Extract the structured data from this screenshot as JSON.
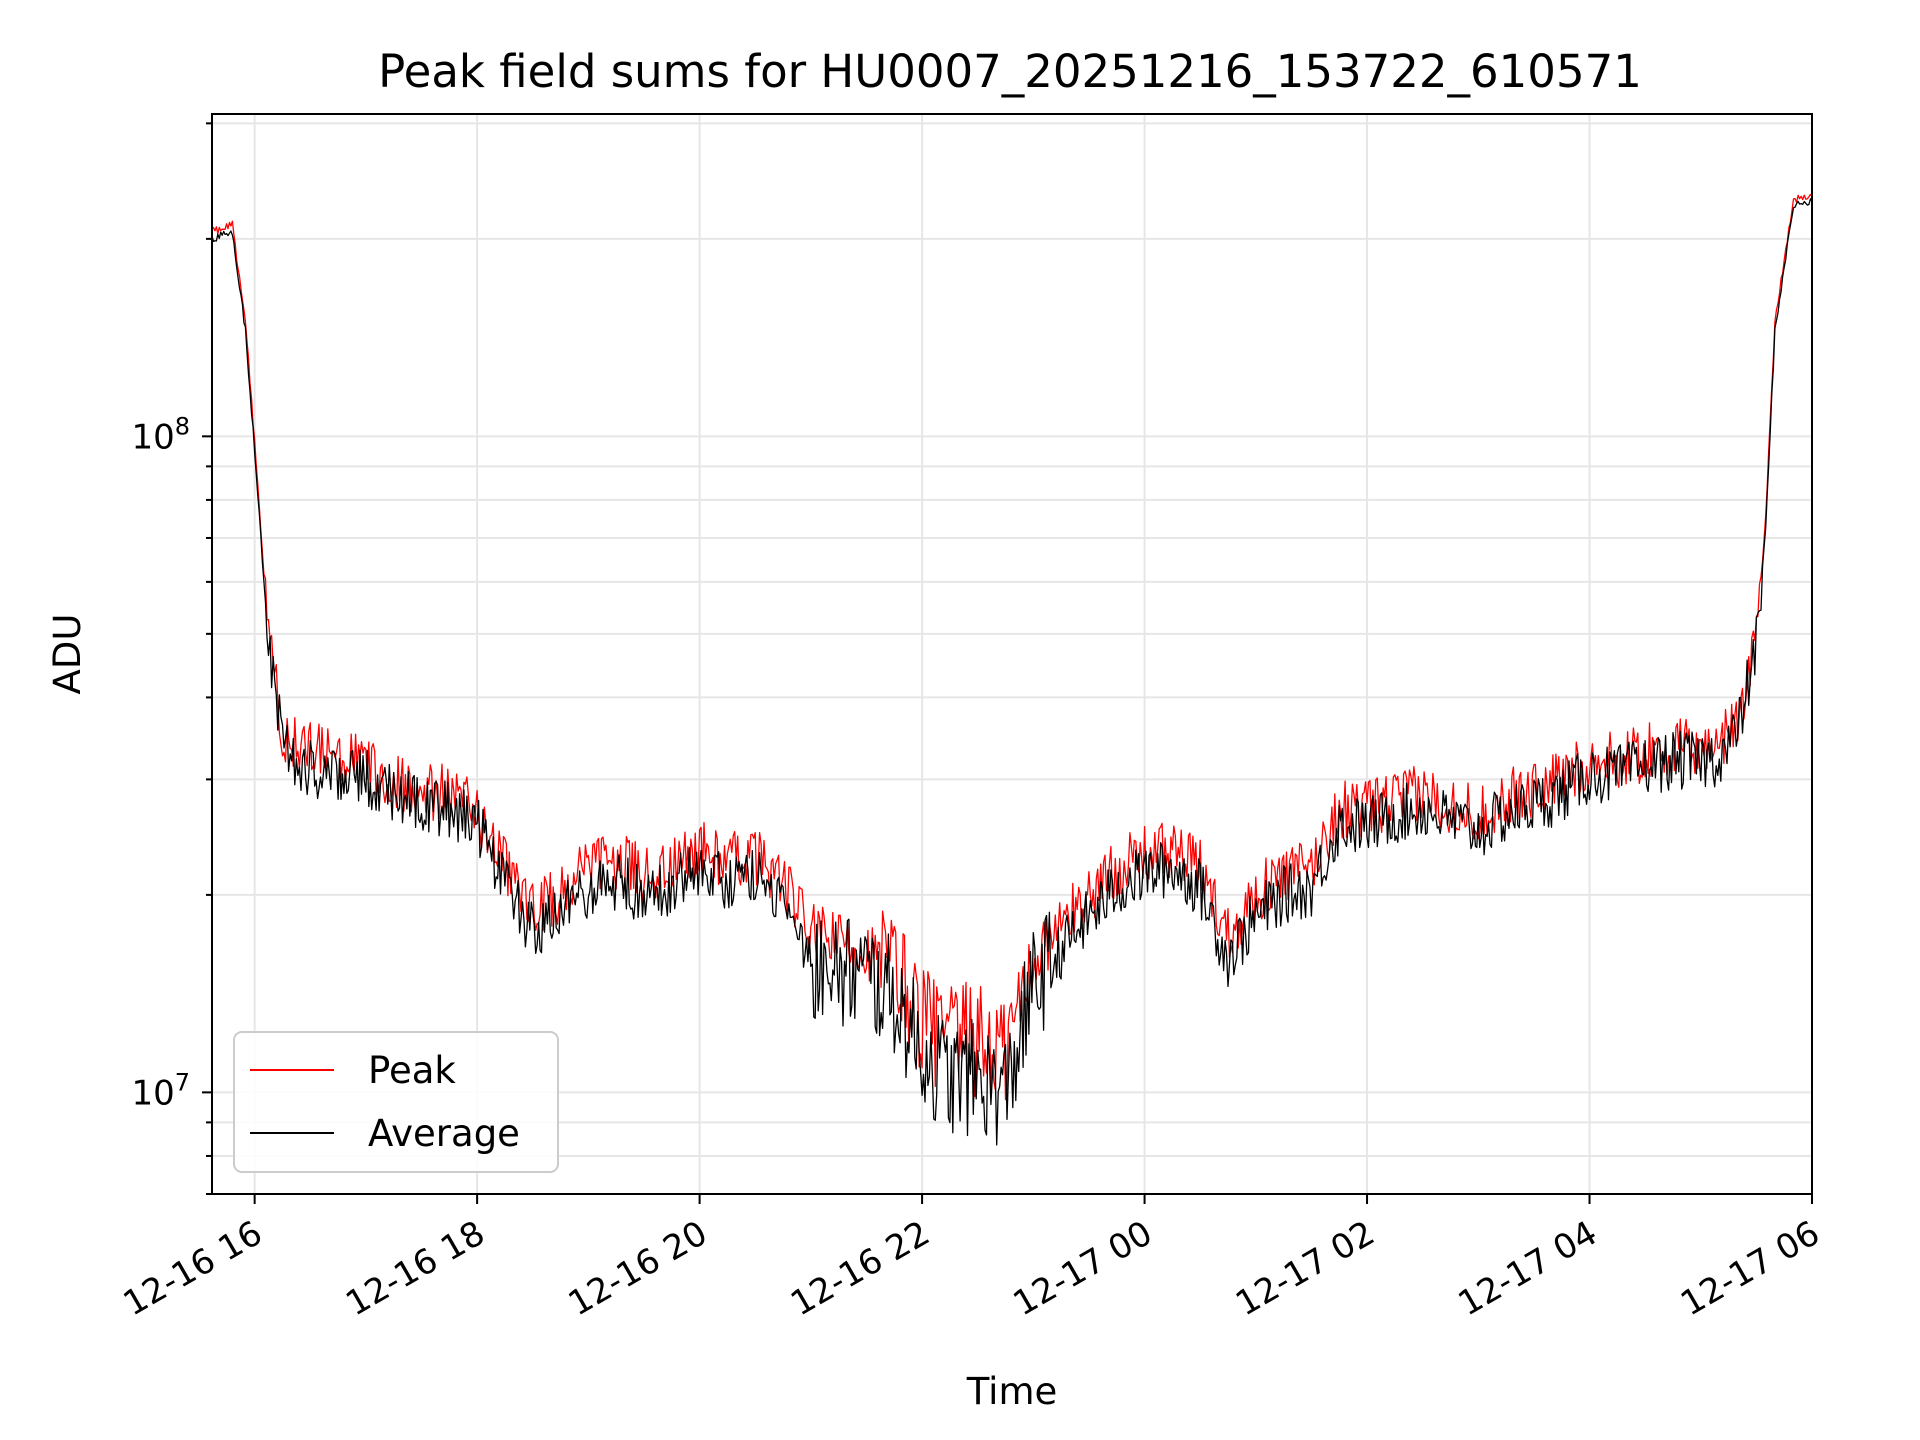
{
  "chart_data": {
    "type": "line",
    "title": "Peak field sums for HU0007_20251216_153722_610571",
    "xlabel": "Time",
    "ylabel": "ADU",
    "yscale": "log",
    "ylim": [
      7000000,
      310000000
    ],
    "xlim": [
      "2025-12-16 15:37",
      "2025-12-17 06:00"
    ],
    "grid": true,
    "legend_position": "lower-left",
    "x_ticks": [
      "12-16 16",
      "12-16 18",
      "12-16 20",
      "12-16 22",
      "12-17 00",
      "12-17 02",
      "12-17 04",
      "12-17 06"
    ],
    "y_ticks": [
      {
        "base": "10",
        "exp": "7",
        "value": 10000000
      },
      {
        "base": "10",
        "exp": "8",
        "value": 100000000
      }
    ],
    "colors": {
      "peak": "#ff0000",
      "average": "#000000",
      "grid": "#e6e6e6"
    },
    "series": [
      {
        "name": "Peak",
        "color": "#ff0000",
        "x": [
          "2025-12-16 15:37",
          "2025-12-16 15:48",
          "2025-12-16 15:55",
          "2025-12-16 16:00",
          "2025-12-16 16:05",
          "2025-12-16 16:10",
          "2025-12-16 16:15",
          "2025-12-16 16:20",
          "2025-12-16 16:30",
          "2025-12-16 16:45",
          "2025-12-16 17:00",
          "2025-12-16 17:15",
          "2025-12-16 17:30",
          "2025-12-16 17:45",
          "2025-12-16 18:00",
          "2025-12-16 18:15",
          "2025-12-16 18:30",
          "2025-12-16 18:45",
          "2025-12-16 19:00",
          "2025-12-16 19:15",
          "2025-12-16 19:30",
          "2025-12-16 19:45",
          "2025-12-16 20:00",
          "2025-12-16 20:15",
          "2025-12-16 20:30",
          "2025-12-16 20:45",
          "2025-12-16 21:00",
          "2025-12-16 21:15",
          "2025-12-16 21:30",
          "2025-12-16 21:45",
          "2025-12-16 22:00",
          "2025-12-16 22:15",
          "2025-12-16 22:30",
          "2025-12-16 22:45",
          "2025-12-16 23:00",
          "2025-12-16 23:15",
          "2025-12-16 23:30",
          "2025-12-16 23:45",
          "2025-12-17 00:00",
          "2025-12-17 00:15",
          "2025-12-17 00:30",
          "2025-12-17 00:45",
          "2025-12-17 01:00",
          "2025-12-17 01:15",
          "2025-12-17 01:30",
          "2025-12-17 01:45",
          "2025-12-17 02:00",
          "2025-12-17 02:15",
          "2025-12-17 02:30",
          "2025-12-17 02:45",
          "2025-12-17 03:00",
          "2025-12-17 03:15",
          "2025-12-17 03:30",
          "2025-12-17 03:45",
          "2025-12-17 04:00",
          "2025-12-17 04:15",
          "2025-12-17 04:30",
          "2025-12-17 04:45",
          "2025-12-17 05:00",
          "2025-12-17 05:10",
          "2025-12-17 05:20",
          "2025-12-17 05:30",
          "2025-12-17 05:35",
          "2025-12-17 05:40",
          "2025-12-17 05:50",
          "2025-12-17 06:00"
        ],
        "values": [
          205000000,
          210000000,
          150000000,
          98000000,
          62000000,
          44000000,
          36000000,
          34000000,
          33000000,
          32500000,
          31500000,
          30000000,
          29000000,
          28500000,
          27000000,
          22000000,
          19000000,
          20000000,
          22000000,
          22500000,
          21500000,
          22000000,
          23500000,
          22500000,
          23000000,
          21000000,
          17500000,
          17000000,
          16500000,
          15500000,
          13000000,
          12000000,
          12000000,
          11500000,
          16000000,
          18000000,
          20000000,
          22000000,
          23000000,
          23500000,
          22000000,
          17500000,
          20000000,
          21500000,
          22000000,
          27000000,
          27000000,
          28000000,
          28500000,
          27500000,
          26500000,
          28000000,
          29000000,
          30000000,
          32000000,
          32000000,
          33000000,
          33500000,
          33500000,
          34000000,
          37000000,
          50000000,
          75000000,
          150000000,
          230000000,
          232000000
        ]
      },
      {
        "name": "Average",
        "color": "#000000",
        "x": [
          "2025-12-16 15:37",
          "2025-12-16 15:48",
          "2025-12-16 15:55",
          "2025-12-16 16:00",
          "2025-12-16 16:05",
          "2025-12-16 16:10",
          "2025-12-16 16:15",
          "2025-12-16 16:20",
          "2025-12-16 16:30",
          "2025-12-16 16:45",
          "2025-12-16 17:00",
          "2025-12-16 17:15",
          "2025-12-16 17:30",
          "2025-12-16 17:45",
          "2025-12-16 18:00",
          "2025-12-16 18:15",
          "2025-12-16 18:30",
          "2025-12-16 18:45",
          "2025-12-16 19:00",
          "2025-12-16 19:15",
          "2025-12-16 19:30",
          "2025-12-16 19:45",
          "2025-12-16 20:00",
          "2025-12-16 20:15",
          "2025-12-16 20:30",
          "2025-12-16 20:45",
          "2025-12-16 21:00",
          "2025-12-16 21:15",
          "2025-12-16 21:30",
          "2025-12-16 21:45",
          "2025-12-16 22:00",
          "2025-12-16 22:15",
          "2025-12-16 22:30",
          "2025-12-16 22:45",
          "2025-12-16 23:00",
          "2025-12-16 23:15",
          "2025-12-16 23:30",
          "2025-12-16 23:45",
          "2025-12-17 00:00",
          "2025-12-17 00:15",
          "2025-12-17 00:30",
          "2025-12-17 00:45",
          "2025-12-17 01:00",
          "2025-12-17 01:15",
          "2025-12-17 01:30",
          "2025-12-17 01:45",
          "2025-12-17 02:00",
          "2025-12-17 02:15",
          "2025-12-17 02:30",
          "2025-12-17 02:45",
          "2025-12-17 03:00",
          "2025-12-17 03:15",
          "2025-12-17 03:30",
          "2025-12-17 03:45",
          "2025-12-17 04:00",
          "2025-12-17 04:15",
          "2025-12-17 04:30",
          "2025-12-17 04:45",
          "2025-12-17 05:00",
          "2025-12-17 05:10",
          "2025-12-17 05:20",
          "2025-12-17 05:30",
          "2025-12-17 05:35",
          "2025-12-17 05:40",
          "2025-12-17 05:50",
          "2025-12-17 06:00"
        ],
        "values": [
          200000000,
          205000000,
          145000000,
          95000000,
          60000000,
          42000000,
          34000000,
          32000000,
          31000000,
          31000000,
          30000000,
          28500000,
          27500000,
          27000000,
          25500000,
          20500000,
          17500000,
          18500000,
          20500000,
          21000000,
          20000000,
          20500000,
          22000000,
          21000000,
          21500000,
          19500000,
          16000000,
          15500000,
          15000000,
          14000000,
          11500000,
          10500000,
          10500000,
          10000000,
          14500000,
          16500000,
          18500000,
          20500000,
          21500000,
          22000000,
          20500000,
          16000000,
          18500000,
          20000000,
          20500000,
          25500000,
          25500000,
          26500000,
          27000000,
          26000000,
          25000000,
          26500000,
          27500000,
          28500000,
          30500000,
          30500000,
          31500000,
          32000000,
          32000000,
          32500000,
          35500000,
          48000000,
          72000000,
          145000000,
          225000000,
          228000000
        ]
      }
    ]
  }
}
